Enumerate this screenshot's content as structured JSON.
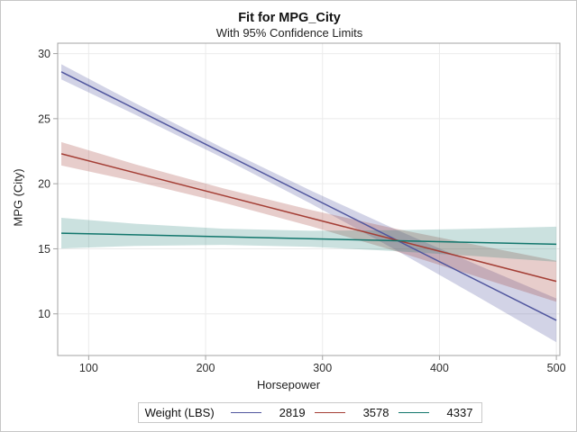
{
  "window": {
    "background": "#ffffff",
    "border_color": "#c6c6c6",
    "frame_color": "#a3a3a3",
    "grid_color": "#ebebeb",
    "tick_color": "#a3a3a3",
    "tick_text_color": "#2d2d2d"
  },
  "header": {
    "title": "Fit for MPG_City",
    "subtitle": "With 95% Confidence Limits"
  },
  "axes": {
    "x": {
      "label": "Horsepower",
      "ticks": [
        "100",
        "200",
        "300",
        "400",
        "500"
      ]
    },
    "y": {
      "label": "MPG (City)",
      "ticks": [
        "10",
        "15",
        "20",
        "25",
        "30"
      ]
    }
  },
  "legend": {
    "title": "Weight (LBS)",
    "items": [
      {
        "label": "2819",
        "color": "#50569e"
      },
      {
        "label": "3578",
        "color": "#a43e35"
      },
      {
        "label": "4337",
        "color": "#11766c"
      }
    ]
  },
  "chart_data": {
    "type": "line",
    "title": "Fit for MPG_City",
    "subtitle": "With 95% Confidence Limits",
    "xlabel": "Horsepower",
    "ylabel": "MPG (City)",
    "xlim": [
      73.5,
      503
    ],
    "ylim": [
      6.8,
      30.8
    ],
    "xticks": [
      100,
      200,
      300,
      400,
      500
    ],
    "yticks": [
      10,
      15,
      20,
      25,
      30
    ],
    "grid": true,
    "legend_title": "Weight (LBS)",
    "legend_position": "bottom",
    "band_meaning": "95% confidence limits around each regression fit line",
    "x_sample": [
      76.6,
      140,
      215,
      290,
      360,
      430,
      500
    ],
    "series": [
      {
        "name": "2819",
        "color": "#50569e",
        "band_color": "rgba(80,86,158,0.26)",
        "x": [
          76.6,
          500
        ],
        "y": [
          28.6,
          9.5
        ],
        "ci_halfwidth": [
          0.58,
          0.44,
          0.38,
          0.5,
          0.78,
          1.2,
          1.68
        ]
      },
      {
        "name": "3578",
        "color": "#a43e35",
        "band_color": "rgba(164,62,53,0.26)",
        "x": [
          76.6,
          500
        ],
        "y": [
          22.3,
          12.5
        ],
        "ci_halfwidth": [
          0.9,
          0.66,
          0.55,
          0.63,
          0.85,
          1.2,
          1.58
        ]
      },
      {
        "name": "4337",
        "color": "#11766c",
        "band_color": "rgba(17,118,108,0.22)",
        "x": [
          76.6,
          500
        ],
        "y": [
          16.2,
          15.35
        ],
        "ci_halfwidth": [
          1.18,
          0.85,
          0.62,
          0.62,
          0.8,
          1.05,
          1.35
        ]
      }
    ]
  }
}
